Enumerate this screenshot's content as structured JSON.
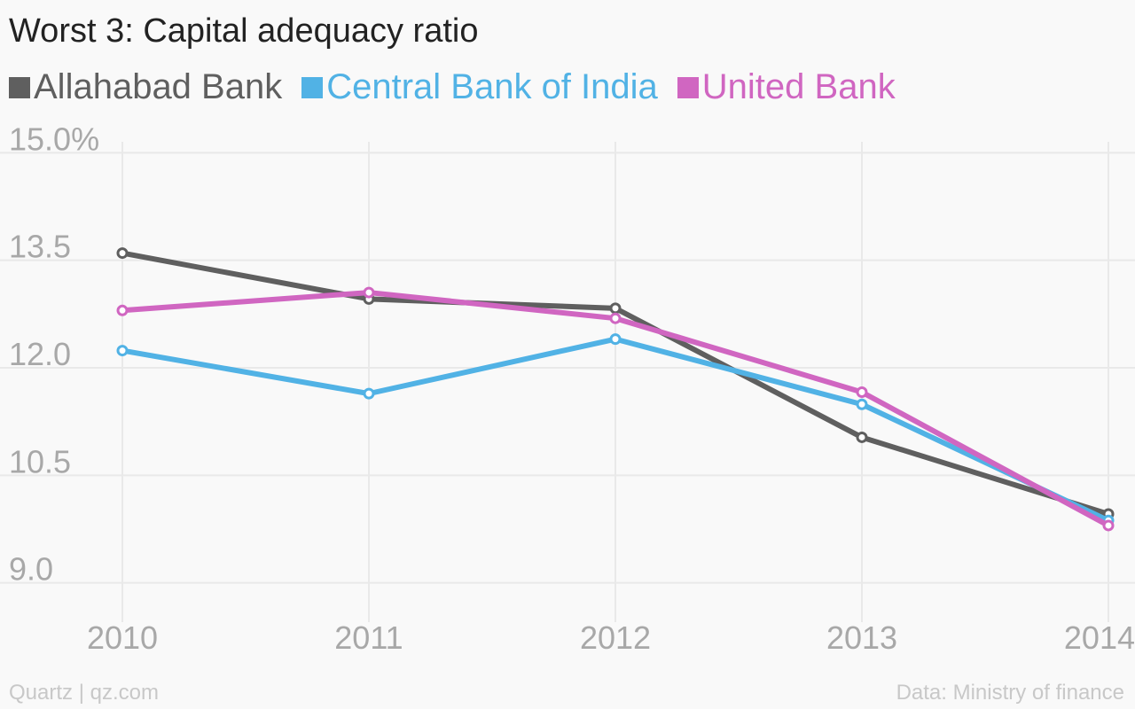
{
  "title": "Worst 3: Capital adequacy ratio",
  "footer": {
    "source_left": "Quartz | qz.com",
    "source_right": "Data: Ministry of finance"
  },
  "chart_data": {
    "type": "line",
    "title": "Worst 3: Capital adequacy ratio",
    "x": [
      "2010",
      "2011",
      "2012",
      "2013",
      "2014"
    ],
    "y_ticks": [
      "15.0%",
      "13.5",
      "12.0",
      "10.5",
      "9.0"
    ],
    "y_tick_values": [
      15.0,
      13.5,
      12.0,
      10.5,
      9.0
    ],
    "ylim": [
      8.6,
      15.4
    ],
    "grid": true,
    "legend_position": "top-left",
    "series": [
      {
        "name": "Allahabad Bank",
        "color": "#5f5f5f",
        "values": [
          13.6,
          12.96,
          12.83,
          11.03,
          9.96
        ]
      },
      {
        "name": "Central Bank of India",
        "color": "#51b2e5",
        "values": [
          12.24,
          11.64,
          12.4,
          11.49,
          9.87
        ]
      },
      {
        "name": "United Bank",
        "color": "#d066c1",
        "values": [
          12.8,
          13.05,
          12.69,
          11.66,
          9.8
        ]
      }
    ]
  }
}
